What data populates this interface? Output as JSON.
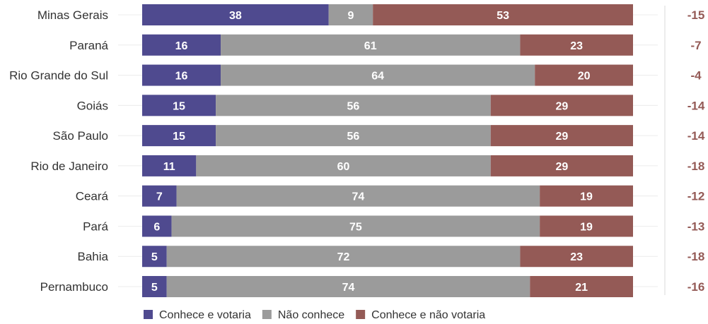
{
  "chart_data": {
    "type": "bar",
    "orientation": "horizontal",
    "stacked": true,
    "categories": [
      "Minas Gerais",
      "Paraná",
      "Rio Grande do Sul",
      "Goiás",
      "São Paulo",
      "Rio de Janeiro",
      "Ceará",
      "Pará",
      "Bahia",
      "Pernambuco"
    ],
    "series": [
      {
        "name": "Conhece e votaria",
        "color": "#4f4a8f",
        "values": [
          38,
          16,
          16,
          15,
          15,
          11,
          7,
          6,
          5,
          5
        ]
      },
      {
        "name": "Não conhece",
        "color": "#9b9b9b",
        "values": [
          9,
          61,
          64,
          56,
          56,
          60,
          74,
          75,
          72,
          74
        ]
      },
      {
        "name": "Conhece e não votaria",
        "color": "#945a56",
        "values": [
          53,
          23,
          20,
          29,
          29,
          29,
          19,
          19,
          23,
          21
        ]
      }
    ],
    "difference": {
      "color": "#945a56",
      "labels": [
        "-15",
        "-7",
        "-4",
        "-14",
        "-14",
        "-18",
        "-12",
        "-13",
        "-18",
        "-16"
      ]
    },
    "xlim": [
      0,
      100
    ],
    "legend_position": "bottom-left",
    "grid": false
  }
}
